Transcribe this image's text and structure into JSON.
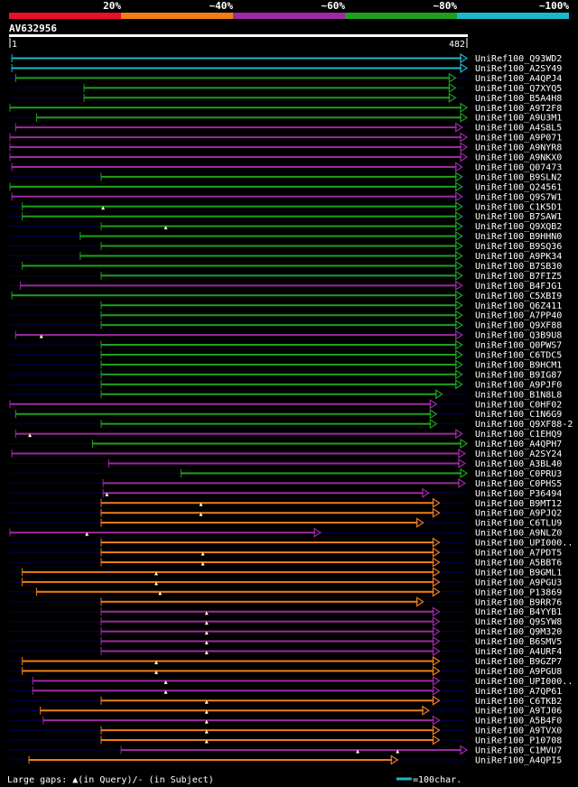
{
  "query_id": "AV632956",
  "ruler": {
    "start": "1",
    "end": "482",
    "length": 482
  },
  "legend_top": [
    {
      "label": "20%",
      "color": "#e8102a"
    },
    {
      "label": "~40%",
      "color": "#f07d1a"
    },
    {
      "label": "~60%",
      "color": "#9c2aa0"
    },
    {
      "label": "~80%",
      "color": "#1ea01e"
    },
    {
      "label": "~100%",
      "color": "#1ab8c8"
    }
  ],
  "footer": {
    "gaps_label": "Large gaps: ▲(in Query)/- (in Subject)",
    "scale_label": "=100char.",
    "scale_chars": 100
  },
  "hits": [
    {
      "name": "UniRef100_Q93WD2",
      "c": "cyan",
      "s": 3,
      "e": 482,
      "q": []
    },
    {
      "name": "UniRef100_A2SY49",
      "c": "cyan",
      "s": 3,
      "e": 482,
      "q": []
    },
    {
      "name": "UniRef100_A4QPJ4",
      "c": "green",
      "s": 7,
      "e": 470,
      "q": []
    },
    {
      "name": "UniRef100_Q7XYQ5",
      "c": "green",
      "s": 79,
      "e": 470,
      "q": []
    },
    {
      "name": "UniRef100_B5A4H8",
      "c": "green",
      "s": 79,
      "e": 470,
      "q": []
    },
    {
      "name": "UniRef100_A9T2F8",
      "c": "green",
      "s": 1,
      "e": 482,
      "q": []
    },
    {
      "name": "UniRef100_A9U3M1",
      "c": "green",
      "s": 29,
      "e": 482,
      "q": []
    },
    {
      "name": "UniRef100_A4S8L5",
      "c": "purple",
      "s": 7,
      "e": 477,
      "q": []
    },
    {
      "name": "UniRef100_A9P071",
      "c": "purple",
      "s": 1,
      "e": 482,
      "q": []
    },
    {
      "name": "UniRef100_A9NYR8",
      "c": "purple",
      "s": 1,
      "e": 482,
      "q": []
    },
    {
      "name": "UniRef100_A9NKX0",
      "c": "purple",
      "s": 1,
      "e": 482,
      "q": []
    },
    {
      "name": "UniRef100_Q07473",
      "c": "purple",
      "s": 3,
      "e": 477,
      "q": []
    },
    {
      "name": "UniRef100_B9SLN2",
      "c": "green",
      "s": 97,
      "e": 477,
      "q": []
    },
    {
      "name": "UniRef100_Q24561",
      "c": "green",
      "s": 1,
      "e": 477,
      "q": []
    },
    {
      "name": "UniRef100_Q9S7W1",
      "c": "purple",
      "s": 3,
      "e": 477,
      "q": []
    },
    {
      "name": "UniRef100_C1K5D1",
      "c": "green",
      "s": 14,
      "e": 477,
      "q": [
        99
      ]
    },
    {
      "name": "UniRef100_B7SAW1",
      "c": "green",
      "s": 14,
      "e": 477,
      "q": []
    },
    {
      "name": "UniRef100_Q9XQB2",
      "c": "green",
      "s": 97,
      "e": 477,
      "q": [
        165
      ]
    },
    {
      "name": "UniRef100_B9HHN0",
      "c": "green",
      "s": 75,
      "e": 477,
      "q": []
    },
    {
      "name": "UniRef100_B9SQ36",
      "c": "green",
      "s": 97,
      "e": 477,
      "q": []
    },
    {
      "name": "UniRef100_A9PK34",
      "c": "green",
      "s": 75,
      "e": 477,
      "q": []
    },
    {
      "name": "UniRef100_B7SB30",
      "c": "green",
      "s": 14,
      "e": 477,
      "q": []
    },
    {
      "name": "UniRef100_B7FIZ5",
      "c": "green",
      "s": 97,
      "e": 477,
      "q": []
    },
    {
      "name": "UniRef100_B4FJG1",
      "c": "purple",
      "s": 12,
      "e": 477,
      "q": []
    },
    {
      "name": "UniRef100_C5XBI9",
      "c": "green",
      "s": 3,
      "e": 477,
      "q": []
    },
    {
      "name": "UniRef100_Q6Z411",
      "c": "green",
      "s": 97,
      "e": 477,
      "q": []
    },
    {
      "name": "UniRef100_A7PP40",
      "c": "green",
      "s": 97,
      "e": 477,
      "q": []
    },
    {
      "name": "UniRef100_Q9XF88",
      "c": "green",
      "s": 97,
      "e": 477,
      "q": []
    },
    {
      "name": "UniRef100_Q3B9U8",
      "c": "purple",
      "s": 7,
      "e": 477,
      "q": [
        34
      ]
    },
    {
      "name": "UniRef100_Q0PWS7",
      "c": "green",
      "s": 97,
      "e": 477,
      "q": []
    },
    {
      "name": "UniRef100_C6TDC5",
      "c": "green",
      "s": 97,
      "e": 477,
      "q": []
    },
    {
      "name": "UniRef100_B9HCM1",
      "c": "green",
      "s": 97,
      "e": 477,
      "q": []
    },
    {
      "name": "UniRef100_B9IG87",
      "c": "green",
      "s": 97,
      "e": 477,
      "q": []
    },
    {
      "name": "UniRef100_A9PJF0",
      "c": "green",
      "s": 97,
      "e": 477,
      "q": []
    },
    {
      "name": "UniRef100_B1N8L8",
      "c": "green",
      "s": 97,
      "e": 456,
      "q": []
    },
    {
      "name": "UniRef100_C0HF02",
      "c": "purple",
      "s": 1,
      "e": 450,
      "q": []
    },
    {
      "name": "UniRef100_C1N6G9",
      "c": "green",
      "s": 7,
      "e": 450,
      "q": []
    },
    {
      "name": "UniRef100_Q9XF88-2",
      "c": "green",
      "s": 97,
      "e": 450,
      "q": []
    },
    {
      "name": "UniRef100_C1EHQ9",
      "c": "purple",
      "s": 7,
      "e": 477,
      "q": [
        22
      ]
    },
    {
      "name": "UniRef100_A4QPH7",
      "c": "green",
      "s": 88,
      "e": 482,
      "q": []
    },
    {
      "name": "UniRef100_A2SY24",
      "c": "purple",
      "s": 3,
      "e": 480,
      "q": []
    },
    {
      "name": "UniRef100_A3BL40",
      "c": "purple",
      "s": 105,
      "e": 480,
      "q": []
    },
    {
      "name": "UniRef100_C0PRU3",
      "c": "green",
      "s": 181,
      "e": 482,
      "q": []
    },
    {
      "name": "UniRef100_C0PHS5",
      "c": "purple",
      "s": 99,
      "e": 480,
      "q": []
    },
    {
      "name": "UniRef100_P36494",
      "c": "purple",
      "s": 99,
      "e": 442,
      "q": [
        103
      ]
    },
    {
      "name": "UniRef100_B9MT12",
      "c": "orange",
      "s": 97,
      "e": 453,
      "q": [
        202
      ]
    },
    {
      "name": "UniRef100_A9PJQ2",
      "c": "orange",
      "s": 97,
      "e": 453,
      "q": [
        202
      ]
    },
    {
      "name": "UniRef100_C6TLU9",
      "c": "orange",
      "s": 97,
      "e": 436,
      "q": []
    },
    {
      "name": "UniRef100_A9NLZ0",
      "c": "purple",
      "s": 1,
      "e": 328,
      "q": [
        82
      ]
    },
    {
      "name": "UniRef100_UPI000..",
      "c": "orange",
      "s": 97,
      "e": 453,
      "q": []
    },
    {
      "name": "UniRef100_A7PDT5",
      "c": "orange",
      "s": 97,
      "e": 453,
      "q": [
        204
      ]
    },
    {
      "name": "UniRef100_A5BBT6",
      "c": "orange",
      "s": 97,
      "e": 453,
      "q": [
        204
      ]
    },
    {
      "name": "UniRef100_B9GML1",
      "c": "orange",
      "s": 14,
      "e": 453,
      "q": [
        155
      ]
    },
    {
      "name": "UniRef100_A9PGU3",
      "c": "orange",
      "s": 14,
      "e": 453,
      "q": [
        155
      ]
    },
    {
      "name": "UniRef100_P13869",
      "c": "orange",
      "s": 29,
      "e": 453,
      "q": [
        159
      ]
    },
    {
      "name": "UniRef100_B9RR76",
      "c": "orange",
      "s": 97,
      "e": 436,
      "q": []
    },
    {
      "name": "UniRef100_B4YYB1",
      "c": "purple",
      "s": 97,
      "e": 453,
      "q": [
        208
      ]
    },
    {
      "name": "UniRef100_Q9SYW8",
      "c": "purple",
      "s": 97,
      "e": 453,
      "q": [
        208
      ]
    },
    {
      "name": "UniRef100_Q9M320",
      "c": "purple",
      "s": 97,
      "e": 453,
      "q": [
        208
      ]
    },
    {
      "name": "UniRef100_B6SMV5",
      "c": "purple",
      "s": 97,
      "e": 453,
      "q": [
        208
      ]
    },
    {
      "name": "UniRef100_A4URF4",
      "c": "purple",
      "s": 97,
      "e": 453,
      "q": [
        208
      ]
    },
    {
      "name": "UniRef100_B9GZP7",
      "c": "orange",
      "s": 14,
      "e": 453,
      "q": [
        155
      ]
    },
    {
      "name": "UniRef100_A9PGU8",
      "c": "orange",
      "s": 14,
      "e": 453,
      "q": [
        155
      ]
    },
    {
      "name": "UniRef100_UPI000..",
      "c": "purple",
      "s": 25,
      "e": 453,
      "q": [
        165
      ]
    },
    {
      "name": "UniRef100_A7QP61",
      "c": "purple",
      "s": 25,
      "e": 453,
      "q": [
        165
      ]
    },
    {
      "name": "UniRef100_C6TKB2",
      "c": "orange",
      "s": 97,
      "e": 453,
      "q": [
        208
      ]
    },
    {
      "name": "UniRef100_A9TJ06",
      "c": "orange",
      "s": 33,
      "e": 442,
      "q": [
        208
      ]
    },
    {
      "name": "UniRef100_A5B4F0",
      "c": "purple",
      "s": 36,
      "e": 453,
      "q": [
        208
      ]
    },
    {
      "name": "UniRef100_A9TVX0",
      "c": "orange",
      "s": 97,
      "e": 453,
      "q": [
        208
      ]
    },
    {
      "name": "UniRef100_P10708",
      "c": "orange",
      "s": 97,
      "e": 453,
      "q": [
        208
      ]
    },
    {
      "name": "UniRef100_C1MVU7",
      "c": "purple",
      "s": 118,
      "e": 482,
      "q": [
        367,
        409
      ]
    },
    {
      "name": "UniRef100_A4QPI5",
      "c": "orange",
      "s": 21,
      "e": 409,
      "q": []
    }
  ],
  "palette": {
    "cyan": "#1ab8c8",
    "green": "#1ea01e",
    "purple": "#9c2aa0",
    "orange": "#f07d1a",
    "red": "#e8102a",
    "axis": "#0000a0"
  }
}
